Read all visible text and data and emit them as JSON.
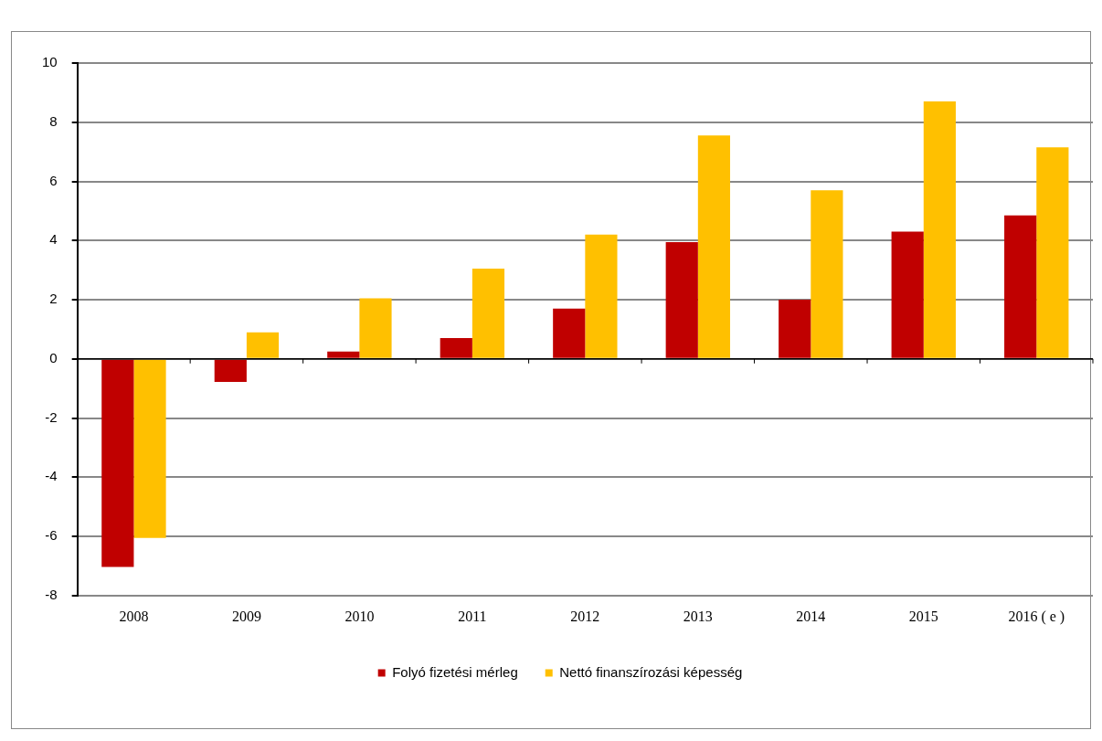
{
  "chart_data": {
    "type": "bar",
    "categories": [
      "2008",
      "2009",
      "2010",
      "2011",
      "2012",
      "2013",
      "2014",
      "2015",
      "2016 ( e )"
    ],
    "series": [
      {
        "name": "Folyó fizetési mérleg",
        "color": "#c00000",
        "values": [
          -7.03,
          -0.78,
          0.25,
          0.7,
          1.7,
          3.95,
          2.0,
          4.3,
          4.85
        ]
      },
      {
        "name": "Nettó finanszírozási képesség",
        "color": "#ffc000",
        "values": [
          -6.05,
          0.9,
          2.05,
          3.05,
          4.2,
          7.55,
          5.7,
          8.7,
          7.15
        ]
      }
    ],
    "ylim": [
      -8,
      10
    ],
    "yticks": [
      -8,
      -6,
      -4,
      -2,
      0,
      2,
      4,
      6,
      8,
      10
    ],
    "grid": "y",
    "legend": "bottom"
  }
}
